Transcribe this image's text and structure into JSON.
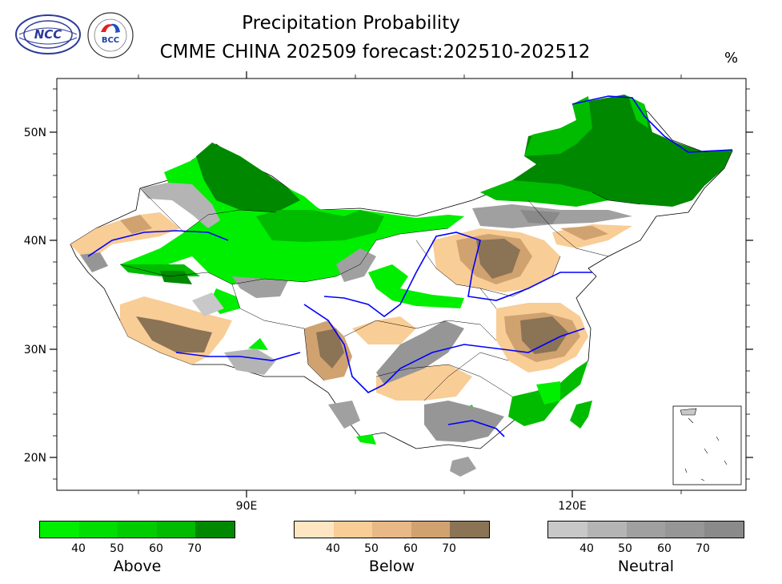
{
  "title_line1": "Precipitation Probability",
  "title_line2": "CMME CHINA 202509 forecast:202510-202512",
  "unit": "%",
  "logos": [
    {
      "name": "NCC",
      "text": "NCC"
    },
    {
      "name": "BCC",
      "text": "BCC"
    }
  ],
  "axes": {
    "lat_labels": [
      "50N",
      "40N",
      "30N",
      "20N"
    ],
    "lon_labels": [
      "90E",
      "120E"
    ]
  },
  "legend": {
    "above": {
      "label": "Above",
      "ticks": [
        "40",
        "50",
        "60",
        "70"
      ],
      "colors": [
        "#00ee00",
        "#00dd00",
        "#00cc00",
        "#00bb00",
        "#008800"
      ]
    },
    "below": {
      "label": "Below",
      "ticks": [
        "40",
        "50",
        "60",
        "70"
      ],
      "colors": [
        "#ffe6c2",
        "#f8cd96",
        "#e8b887",
        "#d0a270",
        "#8b7355"
      ]
    },
    "neutral": {
      "label": "Neutral",
      "ticks": [
        "40",
        "50",
        "60",
        "70"
      ],
      "colors": [
        "#c8c8c8",
        "#b4b4b4",
        "#a0a0a0",
        "#969696",
        "#8a8a8a"
      ]
    }
  },
  "colors": {
    "river": "#0000ff",
    "border": "#000000"
  }
}
